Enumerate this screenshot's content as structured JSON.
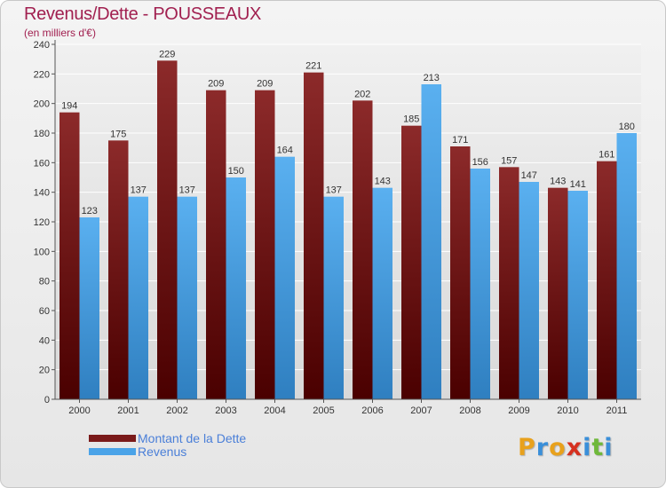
{
  "title": "Revenus/Dette - POUSSEAUX",
  "subtitle": "(en milliers d'€)",
  "logo": {
    "text": "Proxiti",
    "letters": [
      {
        "ch": "P",
        "color": "#e8a11c"
      },
      {
        "ch": "r",
        "color": "#3a8fd9"
      },
      {
        "ch": "o",
        "color": "#e8a11c"
      },
      {
        "ch": "x",
        "color": "#d6301f"
      },
      {
        "ch": "i",
        "color": "#3a8fd9"
      },
      {
        "ch": "t",
        "color": "#6fb83a"
      },
      {
        "ch": "i",
        "color": "#3a8fd9"
      }
    ]
  },
  "legend": [
    {
      "label": "Montant de la Dette",
      "color": "#7a1a1a"
    },
    {
      "label": "Revenus",
      "color": "#4aa3e8"
    }
  ],
  "chart_data": {
    "type": "bar",
    "categories": [
      "2000",
      "2001",
      "2002",
      "2003",
      "2004",
      "2005",
      "2006",
      "2007",
      "2008",
      "2009",
      "2010",
      "2011"
    ],
    "series": [
      {
        "name": "Montant de la Dette",
        "color": "#7a1a1a",
        "values": [
          194,
          175,
          229,
          209,
          209,
          221,
          202,
          185,
          171,
          157,
          143,
          161
        ]
      },
      {
        "name": "Revenus",
        "color": "#4aa3e8",
        "values": [
          123,
          137,
          137,
          150,
          164,
          137,
          143,
          213,
          156,
          147,
          141,
          180
        ]
      }
    ],
    "ylim": [
      0,
      240
    ],
    "yticks": [
      0,
      20,
      40,
      60,
      80,
      100,
      120,
      140,
      160,
      180,
      200,
      220,
      240
    ],
    "grid": true,
    "legend_position": "bottom-left"
  }
}
